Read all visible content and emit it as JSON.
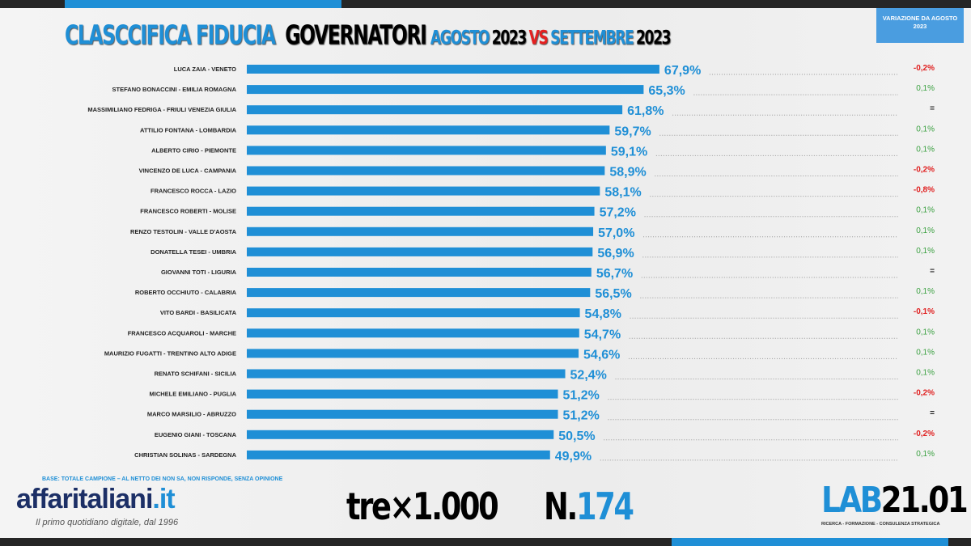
{
  "header": {
    "title_part1": "CLASCCIFICA FIDUCIA",
    "title_part2": "GOVERNATORI",
    "title_part3": "AGOSTO",
    "title_part4": "2023",
    "title_part5": "VS",
    "title_part6": "SETTEMBRE",
    "title_part7": "2023",
    "variation_box": "VARIAZIONE DA AGOSTO 2023"
  },
  "footer": {
    "base_note": "BASE: TOTALE CAMPIONE – AL NETTO DEI NON SA, NON RISPONDE, SENZA OPINIONE",
    "logo1_main": "affaritaliani",
    "logo1_suffix": ".it",
    "logo1_tagline": "Il primo quotidiano digitale, dal 1996",
    "logo2": "tre×1.000",
    "logo3_prefix": "N.",
    "logo3_number": "174",
    "logo4_a": "LAB",
    "logo4_b": "21.01",
    "logo4_tagline": "RICERCA - FORMAZIONE - CONSULENZA STRATEGICA"
  },
  "colors": {
    "bar": "#1f8fd6",
    "positive": "#3aa040",
    "negative": "#e02020"
  },
  "chart_data": {
    "type": "bar",
    "orientation": "horizontal",
    "title": "CLASCCIFICA FIDUCIA GOVERNATORI AGOSTO 2023 VS SETTEMBRE 2023",
    "unit": "%",
    "categories": [
      "LUCA ZAIA - VENETO",
      "STEFANO BONACCINI - EMILIA ROMAGNA",
      "MASSIMILIANO FEDRIGA - FRIULI VENEZIA GIULIA",
      "ATTILIO FONTANA - LOMBARDIA",
      "ALBERTO CIRIO - PIEMONTE",
      "VINCENZO DE LUCA - CAMPANIA",
      "FRANCESCO ROCCA - LAZIO",
      "FRANCESCO ROBERTI - MOLISE",
      "RENZO TESTOLIN - VALLE D'AOSTA",
      "DONATELLA TESEI - UMBRIA",
      "GIOVANNI TOTI - LIGURIA",
      "ROBERTO OCCHIUTO - CALABRIA",
      "VITO BARDI - BASILICATA",
      "FRANCESCO ACQUAROLI - MARCHE",
      "MAURIZIO FUGATTI - TRENTINO ALTO ADIGE",
      "RENATO SCHIFANI - SICILIA",
      "MICHELE EMILIANO - PUGLIA",
      "MARCO MARSILIO - ABRUZZO",
      "EUGENIO GIANI - TOSCANA",
      "CHRISTIAN SOLINAS - SARDEGNA"
    ],
    "values": [
      67.9,
      65.3,
      61.8,
      59.7,
      59.1,
      58.9,
      58.1,
      57.2,
      57.0,
      56.9,
      56.7,
      56.5,
      54.8,
      54.7,
      54.6,
      52.4,
      51.2,
      51.2,
      50.5,
      49.9
    ],
    "labels": [
      "67,9%",
      "65,3%",
      "61,8%",
      "59,7%",
      "59,1%",
      "58,9%",
      "58,1%",
      "57,2%",
      "57,0%",
      "56,9%",
      "56,7%",
      "56,5%",
      "54,8%",
      "54,7%",
      "54,6%",
      "52,4%",
      "51,2%",
      "51,2%",
      "50,5%",
      "49,9%"
    ],
    "variation": [
      "-0,2%",
      "0,1%",
      "=",
      "0,1%",
      "0,1%",
      "-0,2%",
      "-0,8%",
      "0,1%",
      "0,1%",
      "0,1%",
      "=",
      "0,1%",
      "-0,1%",
      "0,1%",
      "0,1%",
      "0,1%",
      "-0,2%",
      "=",
      "-0,2%",
      "0,1%"
    ],
    "xlim": [
      0,
      100
    ]
  }
}
